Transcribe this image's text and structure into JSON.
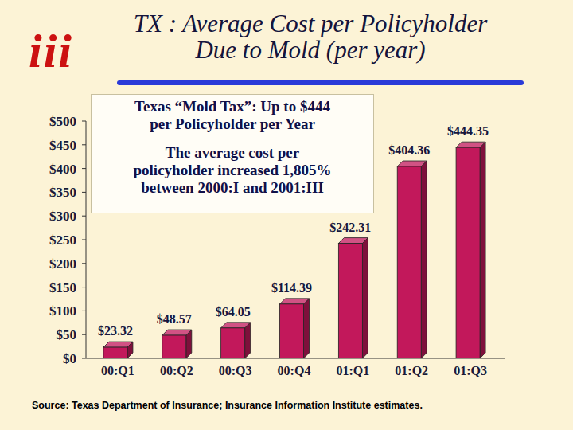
{
  "chart_data": {
    "type": "bar",
    "logo": "iii",
    "title": "TX : Average Cost per Policyholder\nDue to Mold (per year)",
    "annotations": [
      "Texas “Mold Tax”: Up to $444\nper Policyholder per Year",
      "The average cost per\npolicyholder increased 1,805%\nbetween  2000:I and 2001:III"
    ],
    "source": "Source: Texas Department of Insurance; Insurance Information Institute estimates.",
    "categories": [
      "00:Q1",
      "00:Q2",
      "00:Q3",
      "00:Q4",
      "01:Q1",
      "01:Q2",
      "01:Q3"
    ],
    "values": [
      23.32,
      48.57,
      64.05,
      114.39,
      242.31,
      404.36,
      444.35
    ],
    "value_labels": [
      "$23.32",
      "$48.57",
      "$64.05",
      "$114.39",
      "$242.31",
      "$404.36",
      "$444.35"
    ],
    "data_labels": true,
    "color": "#c2185b",
    "ylim": [
      0,
      500
    ],
    "yticks": [
      {
        "value": 0,
        "label": "$0"
      },
      {
        "value": 50,
        "label": "$50"
      },
      {
        "value": 100,
        "label": "$100"
      },
      {
        "value": 150,
        "label": "$150"
      },
      {
        "value": 200,
        "label": "$200"
      },
      {
        "value": 250,
        "label": "$250"
      },
      {
        "value": 300,
        "label": "$300"
      },
      {
        "value": 350,
        "label": "$350"
      },
      {
        "value": 400,
        "label": "$400"
      },
      {
        "value": 450,
        "label": "$450"
      },
      {
        "value": 500,
        "label": "$500"
      }
    ],
    "grid": false
  }
}
